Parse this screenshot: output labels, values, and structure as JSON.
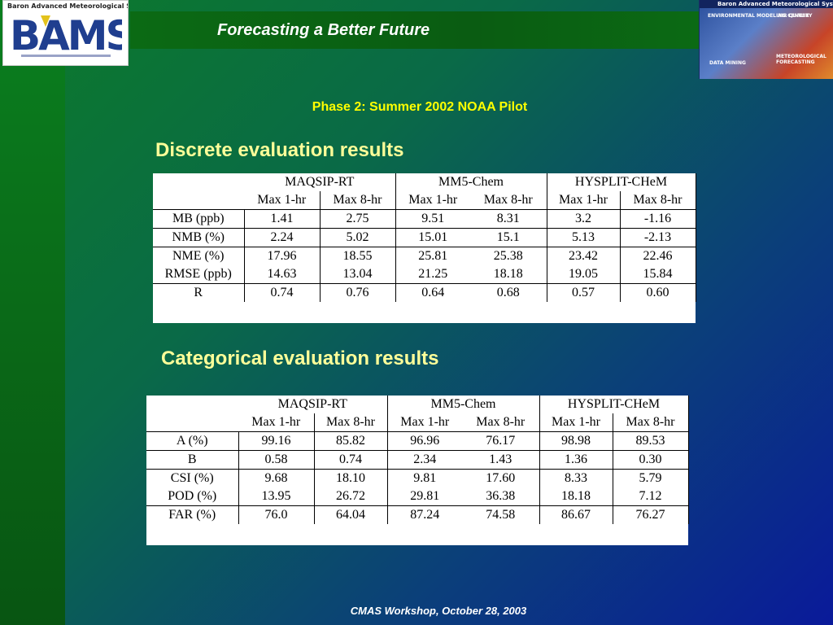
{
  "header": {
    "title": "Forecasting a Better Future",
    "logo_company": "Baron Advanced Meteorological Systems",
    "logo_text": "BAMS",
    "banner_header": "Baron Advanced Meteorological Systems",
    "banner_tags": [
      "Environmental Modeling Center",
      "Air Quality",
      "Data Mining",
      "Meteorological Forecasting"
    ]
  },
  "subtitle": "Phase 2: Summer 2002 NOAA Pilot",
  "discrete": {
    "heading": "Discrete evaluation results",
    "models": [
      "MAQSIP-RT",
      "MM5-Chem",
      "HYSPLIT-CHeM"
    ],
    "subheaders": [
      "Max 1-hr",
      "Max 8-hr",
      "Max 1-hr",
      "Max 8-hr",
      "Max 1-hr",
      "Max 8-hr"
    ],
    "rows": [
      {
        "label": "MB (ppb)",
        "values": [
          "1.41",
          "2.75",
          "9.51",
          "8.31",
          "3.2",
          "-1.16"
        ]
      },
      {
        "label": "NMB (%)",
        "values": [
          "2.24",
          "5.02",
          "15.01",
          "15.1",
          "5.13",
          "-2.13"
        ]
      },
      {
        "label": "NME (%)",
        "values": [
          "17.96",
          "18.55",
          "25.81",
          "25.38",
          "23.42",
          "22.46"
        ]
      },
      {
        "label": "RMSE (ppb)",
        "values": [
          "14.63",
          "13.04",
          "21.25",
          "18.18",
          "19.05",
          "15.84"
        ]
      },
      {
        "label": "R",
        "values": [
          "0.74",
          "0.76",
          "0.64",
          "0.68",
          "0.57",
          "0.60"
        ]
      }
    ]
  },
  "categorical": {
    "heading": "Categorical evaluation results",
    "models": [
      "MAQSIP-RT",
      "MM5-Chem",
      "HYSPLIT-CHeM"
    ],
    "subheaders": [
      "Max 1-hr",
      "Max 8-hr",
      "Max 1-hr",
      "Max 8-hr",
      "Max 1-hr",
      "Max 8-hr"
    ],
    "rows": [
      {
        "label": "A (%)",
        "values": [
          "99.16",
          "85.82",
          "96.96",
          "76.17",
          "98.98",
          "89.53"
        ]
      },
      {
        "label": "B",
        "values": [
          "0.58",
          "0.74",
          "2.34",
          "1.43",
          "1.36",
          "0.30"
        ]
      },
      {
        "label": "CSI (%)",
        "values": [
          "9.68",
          "18.10",
          "9.81",
          "17.60",
          "8.33",
          "5.79"
        ]
      },
      {
        "label": "POD (%)",
        "values": [
          "13.95",
          "26.72",
          "29.81",
          "36.38",
          "18.18",
          "7.12"
        ]
      },
      {
        "label": "FAR (%)",
        "values": [
          "76.0",
          "64.04",
          "87.24",
          "74.58",
          "86.67",
          "76.27"
        ]
      }
    ]
  },
  "footer": "CMAS Workshop, October 28, 2003",
  "colors": {
    "heading": "#ffff99",
    "subtitle": "#ffff00",
    "left_band": "#0a7f1f",
    "background_end": "#0a1a9a"
  }
}
